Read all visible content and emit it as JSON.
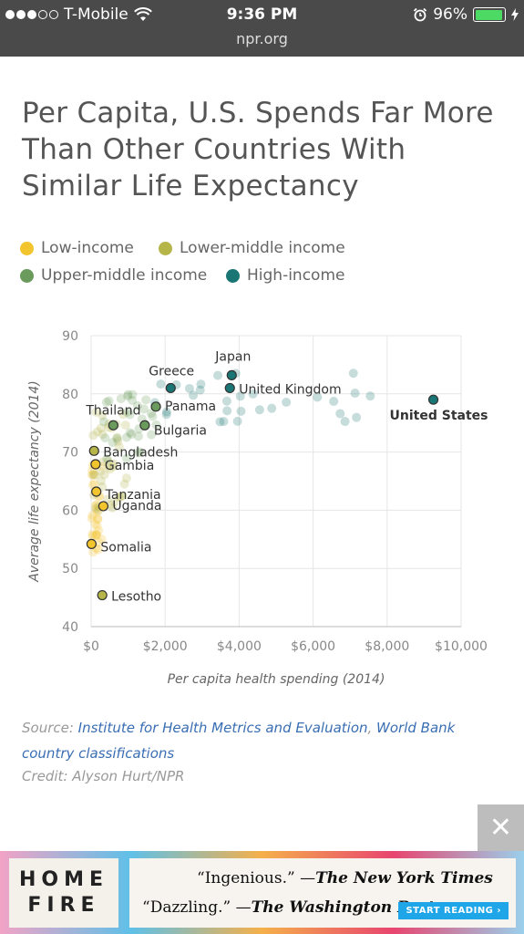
{
  "status_bar": {
    "carrier": "T-Mobile",
    "time": "9:36 PM",
    "battery": "96%",
    "battery_level": 0.96,
    "url": "npr.org"
  },
  "article": {
    "title": "Per Capita, U.S. Spends Far More Than Other Countries With Similar Life Expectancy"
  },
  "legend": [
    {
      "label": "Low-income",
      "color": "#f2c52e"
    },
    {
      "label": "Lower-middle income",
      "color": "#b5b54a"
    },
    {
      "label": "Upper-middle income",
      "color": "#6a9a5c"
    },
    {
      "label": "High-income",
      "color": "#1a7675"
    }
  ],
  "chart_data": {
    "type": "scatter",
    "xlabel": "Per capita health spending (2014)",
    "ylabel": "Average life expectancy (2014)",
    "xlim": [
      0,
      10000
    ],
    "ylim": [
      40,
      90
    ],
    "x_ticks": [
      "$0",
      "$2,000",
      "$4,000",
      "$6,000",
      "$8,000",
      "$10,000"
    ],
    "y_ticks": [
      "40",
      "50",
      "60",
      "70",
      "80",
      "90"
    ],
    "grid": true,
    "labeled_points": [
      {
        "name": "Japan",
        "x": 3800,
        "y": 83.2,
        "group": "High-income"
      },
      {
        "name": "Greece",
        "x": 2150,
        "y": 81.0,
        "group": "High-income"
      },
      {
        "name": "United Kingdom",
        "x": 3750,
        "y": 81.0,
        "group": "High-income"
      },
      {
        "name": "United States",
        "x": 9250,
        "y": 79.0,
        "group": "High-income"
      },
      {
        "name": "Panama",
        "x": 1750,
        "y": 77.8,
        "group": "Upper-middle income"
      },
      {
        "name": "Thailand",
        "x": 600,
        "y": 74.6,
        "group": "Upper-middle income"
      },
      {
        "name": "Bulgaria",
        "x": 1450,
        "y": 74.6,
        "group": "Upper-middle income"
      },
      {
        "name": "Bangladesh",
        "x": 80,
        "y": 70.2,
        "group": "Lower-middle income"
      },
      {
        "name": "Gambia",
        "x": 120,
        "y": 67.9,
        "group": "Low-income"
      },
      {
        "name": "Tanzania",
        "x": 140,
        "y": 63.2,
        "group": "Low-income"
      },
      {
        "name": "Uganda",
        "x": 330,
        "y": 60.7,
        "group": "Low-income"
      },
      {
        "name": "Somalia",
        "x": 10,
        "y": 54.2,
        "group": "Low-income"
      },
      {
        "name": "Lesotho",
        "x": 300,
        "y": 45.4,
        "group": "Lower-middle income"
      }
    ]
  },
  "source": {
    "prefix": "Source: ",
    "link1": "Institute for Health Metrics and Evaluation",
    "separator": ", ",
    "link2": "World Bank country classifications",
    "credit": "Credit: Alyson Hurt/NPR"
  },
  "ad": {
    "book_line1": "HOME",
    "book_line2": "FIRE",
    "quote1": "“Ingenious.” —",
    "quote1_source": "The New York Times",
    "quote2": "“Dazzling.” —",
    "quote2_source": "The Washington Post",
    "cta": "START READING ›",
    "close": "✕"
  }
}
